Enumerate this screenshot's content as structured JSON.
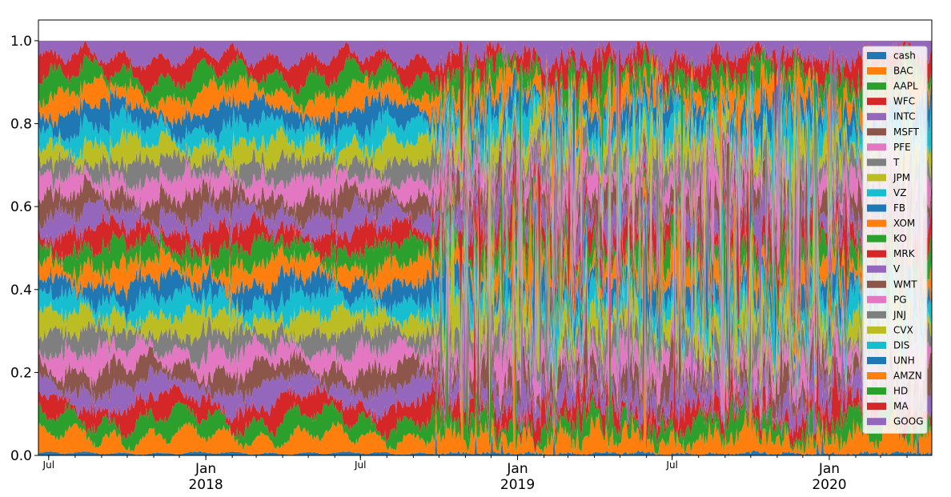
{
  "chart_data": {
    "type": "area",
    "stacked": true,
    "normalized": true,
    "x_range": [
      "2017-06-19",
      "2020-04-30"
    ],
    "ylim": [
      0,
      1.05
    ],
    "y_ticks": [
      0.0,
      0.2,
      0.4,
      0.6,
      0.8,
      1.0
    ],
    "y_tick_labels": [
      "0.0",
      "0.2",
      "0.4",
      "0.6",
      "0.8",
      "1.0"
    ],
    "x_major_ticks": [
      {
        "date": "2017-07-01",
        "label": "Jul",
        "year": ""
      },
      {
        "date": "2018-01-01",
        "label": "Jan",
        "year": "2018"
      },
      {
        "date": "2018-07-01",
        "label": "Jul",
        "year": ""
      },
      {
        "date": "2019-01-01",
        "label": "Jan",
        "year": "2019"
      },
      {
        "date": "2019-07-01",
        "label": "Jul",
        "year": ""
      },
      {
        "date": "2020-01-01",
        "label": "Jan",
        "year": "2020"
      }
    ],
    "grid": false,
    "legend_position": "right",
    "title": "",
    "xlabel": "",
    "ylabel": "",
    "series": [
      {
        "name": "cash",
        "color": "#1f77b4",
        "mean_weight": 0.005
      },
      {
        "name": "BAC",
        "color": "#ff7f0e",
        "mean_weight": 0.04
      },
      {
        "name": "AAPL",
        "color": "#2ca02c",
        "mean_weight": 0.04
      },
      {
        "name": "WFC",
        "color": "#d62728",
        "mean_weight": 0.04
      },
      {
        "name": "INTC",
        "color": "#9467bd",
        "mean_weight": 0.04
      },
      {
        "name": "MSFT",
        "color": "#8c564b",
        "mean_weight": 0.04
      },
      {
        "name": "PFE",
        "color": "#e377c2",
        "mean_weight": 0.04
      },
      {
        "name": "T",
        "color": "#7f7f7f",
        "mean_weight": 0.04
      },
      {
        "name": "JPM",
        "color": "#bcbd22",
        "mean_weight": 0.04
      },
      {
        "name": "VZ",
        "color": "#17becf",
        "mean_weight": 0.04
      },
      {
        "name": "FB",
        "color": "#1f77b4",
        "mean_weight": 0.04
      },
      {
        "name": "XOM",
        "color": "#ff7f0e",
        "mean_weight": 0.04
      },
      {
        "name": "KO",
        "color": "#2ca02c",
        "mean_weight": 0.04
      },
      {
        "name": "MRK",
        "color": "#d62728",
        "mean_weight": 0.04
      },
      {
        "name": "V",
        "color": "#9467bd",
        "mean_weight": 0.04
      },
      {
        "name": "WMT",
        "color": "#8c564b",
        "mean_weight": 0.04
      },
      {
        "name": "PG",
        "color": "#e377c2",
        "mean_weight": 0.04
      },
      {
        "name": "JNJ",
        "color": "#7f7f7f",
        "mean_weight": 0.04
      },
      {
        "name": "CVX",
        "color": "#bcbd22",
        "mean_weight": 0.04
      },
      {
        "name": "DIS",
        "color": "#17becf",
        "mean_weight": 0.04
      },
      {
        "name": "UNH",
        "color": "#1f77b4",
        "mean_weight": 0.04
      },
      {
        "name": "AMZN",
        "color": "#ff7f0e",
        "mean_weight": 0.04
      },
      {
        "name": "HD",
        "color": "#2ca02c",
        "mean_weight": 0.04
      },
      {
        "name": "MA",
        "color": "#d62728",
        "mean_weight": 0.04
      },
      {
        "name": "GOOG",
        "color": "#9467bd",
        "mean_weight": 0.04
      }
    ]
  }
}
